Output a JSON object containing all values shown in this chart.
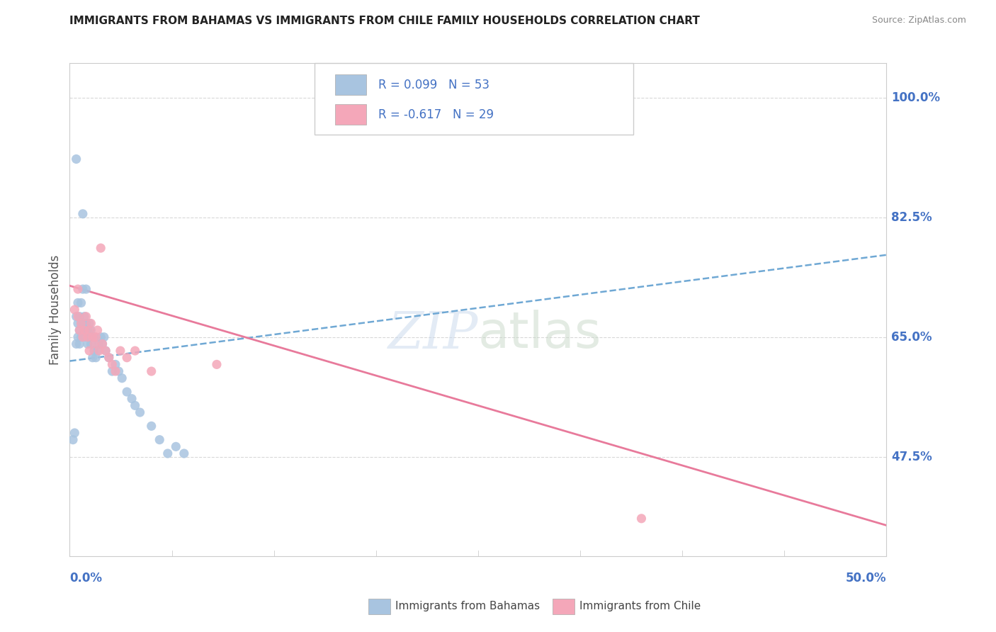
{
  "title": "IMMIGRANTS FROM BAHAMAS VS IMMIGRANTS FROM CHILE FAMILY HOUSEHOLDS CORRELATION CHART",
  "source": "Source: ZipAtlas.com",
  "ylabel": "Family Households",
  "legend_label_1": "R = 0.099   N = 53",
  "legend_label_2": "R = -0.617   N = 29",
  "legend_bottom_1": "Immigrants from Bahamas",
  "legend_bottom_2": "Immigrants from Chile",
  "color_bahamas": "#a8c4e0",
  "color_chile": "#f4a7b9",
  "color_line_bahamas": "#6fa8d4",
  "color_line_chile": "#e87a9b",
  "color_blue_text": "#4472c4",
  "xmin": 0.0,
  "xmax": 0.5,
  "ymin": 0.33,
  "ymax": 1.05,
  "ytick_vals": [
    1.0,
    0.825,
    0.65,
    0.475
  ],
  "ytick_labels": [
    "100.0%",
    "82.5%",
    "65.0%",
    "47.5%"
  ],
  "bahamas_x": [
    0.002,
    0.003,
    0.004,
    0.004,
    0.005,
    0.005,
    0.005,
    0.006,
    0.006,
    0.006,
    0.007,
    0.007,
    0.007,
    0.008,
    0.008,
    0.008,
    0.009,
    0.009,
    0.01,
    0.01,
    0.01,
    0.011,
    0.011,
    0.012,
    0.012,
    0.013,
    0.013,
    0.014,
    0.015,
    0.015,
    0.016,
    0.017,
    0.018,
    0.019,
    0.02,
    0.021,
    0.022,
    0.024,
    0.026,
    0.028,
    0.03,
    0.032,
    0.035,
    0.038,
    0.04,
    0.043,
    0.05,
    0.055,
    0.06,
    0.065,
    0.07,
    0.008,
    0.004
  ],
  "bahamas_y": [
    0.5,
    0.51,
    0.68,
    0.64,
    0.67,
    0.65,
    0.7,
    0.64,
    0.66,
    0.68,
    0.65,
    0.67,
    0.7,
    0.65,
    0.67,
    0.72,
    0.66,
    0.68,
    0.65,
    0.67,
    0.72,
    0.66,
    0.64,
    0.65,
    0.67,
    0.66,
    0.64,
    0.62,
    0.63,
    0.65,
    0.62,
    0.63,
    0.64,
    0.65,
    0.64,
    0.65,
    0.63,
    0.62,
    0.6,
    0.61,
    0.6,
    0.59,
    0.57,
    0.56,
    0.55,
    0.54,
    0.52,
    0.5,
    0.48,
    0.49,
    0.48,
    0.83,
    0.91
  ],
  "chile_x": [
    0.003,
    0.005,
    0.005,
    0.006,
    0.007,
    0.008,
    0.009,
    0.01,
    0.011,
    0.012,
    0.012,
    0.013,
    0.014,
    0.015,
    0.016,
    0.017,
    0.018,
    0.019,
    0.02,
    0.022,
    0.024,
    0.026,
    0.028,
    0.031,
    0.035,
    0.04,
    0.05,
    0.09,
    0.35
  ],
  "chile_y": [
    0.69,
    0.72,
    0.68,
    0.66,
    0.67,
    0.65,
    0.66,
    0.68,
    0.65,
    0.66,
    0.63,
    0.67,
    0.65,
    0.64,
    0.65,
    0.66,
    0.63,
    0.78,
    0.64,
    0.63,
    0.62,
    0.61,
    0.6,
    0.63,
    0.62,
    0.63,
    0.6,
    0.61,
    0.385
  ],
  "trend_bahamas_x0": 0.0,
  "trend_bahamas_x1": 0.5,
  "trend_bahamas_y0": 0.615,
  "trend_bahamas_y1": 0.77,
  "trend_chile_x0": 0.0,
  "trend_chile_x1": 0.5,
  "trend_chile_y0": 0.725,
  "trend_chile_y1": 0.375,
  "background_color": "#ffffff",
  "grid_color": "#d8d8d8"
}
